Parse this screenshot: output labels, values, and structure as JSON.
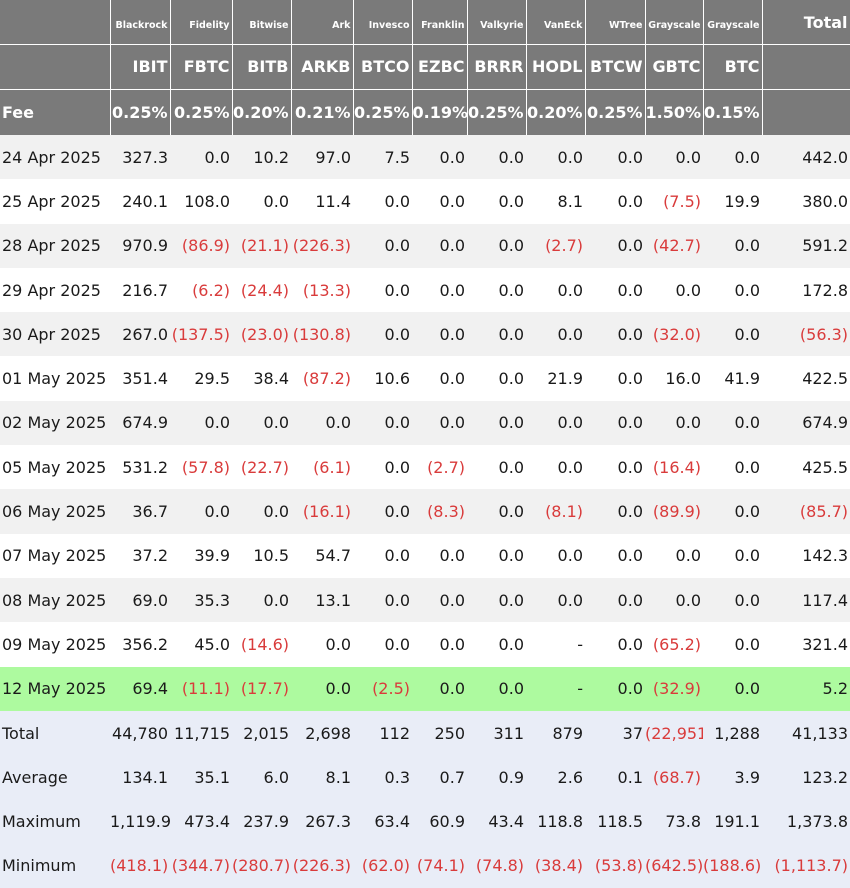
{
  "header": {
    "issuers": [
      "Blackrock",
      "Fidelity",
      "Bitwise",
      "Ark",
      "Invesco",
      "Franklin",
      "Valkyrie",
      "VanEck",
      "WTree",
      "Grayscale",
      "Grayscale"
    ],
    "total_label": "Total",
    "tickers": [
      "IBIT",
      "FBTC",
      "BITB",
      "ARKB",
      "BTCO",
      "EZBC",
      "BRRR",
      "HODL",
      "BTCW",
      "GBTC",
      "BTC"
    ],
    "fee_label": "Fee",
    "fees": [
      "0.25%",
      "0.25%",
      "0.20%",
      "0.21%",
      "0.25%",
      "0.19%",
      "0.25%",
      "0.20%",
      "0.25%",
      "1.50%",
      "0.15%"
    ]
  },
  "rows": [
    {
      "date": "24 Apr 2025",
      "values": [
        "327.3",
        "0.0",
        "10.2",
        "97.0",
        "7.5",
        "0.0",
        "0.0",
        "0.0",
        "0.0",
        "0.0",
        "0.0"
      ],
      "total": "442.0"
    },
    {
      "date": "25 Apr 2025",
      "values": [
        "240.1",
        "108.0",
        "0.0",
        "11.4",
        "0.0",
        "0.0",
        "0.0",
        "8.1",
        "0.0",
        "(7.5)",
        "19.9"
      ],
      "total": "380.0"
    },
    {
      "date": "28 Apr 2025",
      "values": [
        "970.9",
        "(86.9)",
        "(21.1)",
        "(226.3)",
        "0.0",
        "0.0",
        "0.0",
        "(2.7)",
        "0.0",
        "(42.7)",
        "0.0"
      ],
      "total": "591.2"
    },
    {
      "date": "29 Apr 2025",
      "values": [
        "216.7",
        "(6.2)",
        "(24.4)",
        "(13.3)",
        "0.0",
        "0.0",
        "0.0",
        "0.0",
        "0.0",
        "0.0",
        "0.0"
      ],
      "total": "172.8"
    },
    {
      "date": "30 Apr 2025",
      "values": [
        "267.0",
        "(137.5)",
        "(23.0)",
        "(130.8)",
        "0.0",
        "0.0",
        "0.0",
        "0.0",
        "0.0",
        "(32.0)",
        "0.0"
      ],
      "total": "(56.3)"
    },
    {
      "date": "01 May 2025",
      "values": [
        "351.4",
        "29.5",
        "38.4",
        "(87.2)",
        "10.6",
        "0.0",
        "0.0",
        "21.9",
        "0.0",
        "16.0",
        "41.9"
      ],
      "total": "422.5"
    },
    {
      "date": "02 May 2025",
      "values": [
        "674.9",
        "0.0",
        "0.0",
        "0.0",
        "0.0",
        "0.0",
        "0.0",
        "0.0",
        "0.0",
        "0.0",
        "0.0"
      ],
      "total": "674.9"
    },
    {
      "date": "05 May 2025",
      "values": [
        "531.2",
        "(57.8)",
        "(22.7)",
        "(6.1)",
        "0.0",
        "(2.7)",
        "0.0",
        "0.0",
        "0.0",
        "(16.4)",
        "0.0"
      ],
      "total": "425.5"
    },
    {
      "date": "06 May 2025",
      "values": [
        "36.7",
        "0.0",
        "0.0",
        "(16.1)",
        "0.0",
        "(8.3)",
        "0.0",
        "(8.1)",
        "0.0",
        "(89.9)",
        "0.0"
      ],
      "total": "(85.7)"
    },
    {
      "date": "07 May 2025",
      "values": [
        "37.2",
        "39.9",
        "10.5",
        "54.7",
        "0.0",
        "0.0",
        "0.0",
        "0.0",
        "0.0",
        "0.0",
        "0.0"
      ],
      "total": "142.3"
    },
    {
      "date": "08 May 2025",
      "values": [
        "69.0",
        "35.3",
        "0.0",
        "13.1",
        "0.0",
        "0.0",
        "0.0",
        "0.0",
        "0.0",
        "0.0",
        "0.0"
      ],
      "total": "117.4"
    },
    {
      "date": "09 May 2025",
      "values": [
        "356.2",
        "45.0",
        "(14.6)",
        "0.0",
        "0.0",
        "0.0",
        "0.0",
        "-",
        "0.0",
        "(65.2)",
        "0.0"
      ],
      "total": "321.4"
    },
    {
      "date": "12 May 2025",
      "values": [
        "69.4",
        "(11.1)",
        "(17.7)",
        "0.0",
        "(2.5)",
        "0.0",
        "0.0",
        "-",
        "0.0",
        "(32.9)",
        "0.0"
      ],
      "total": "5.2",
      "highlight": true
    }
  ],
  "summary": [
    {
      "label": "Total",
      "values": [
        "44,780",
        "11,715",
        "2,015",
        "2,698",
        "112",
        "250",
        "311",
        "879",
        "37",
        "(22,951)",
        "1,288"
      ],
      "total": "41,133"
    },
    {
      "label": "Average",
      "values": [
        "134.1",
        "35.1",
        "6.0",
        "8.1",
        "0.3",
        "0.7",
        "0.9",
        "2.6",
        "0.1",
        "(68.7)",
        "3.9"
      ],
      "total": "123.2"
    },
    {
      "label": "Maximum",
      "values": [
        "1,119.9",
        "473.4",
        "237.9",
        "267.3",
        "63.4",
        "60.9",
        "43.4",
        "118.8",
        "118.5",
        "73.8",
        "191.1"
      ],
      "total": "1,373.8"
    },
    {
      "label": "Minimum",
      "values": [
        "(418.1)",
        "(344.7)",
        "(280.7)",
        "(226.3)",
        "(62.0)",
        "(74.1)",
        "(74.8)",
        "(38.4)",
        "(53.8)",
        "(642.5)",
        "(188.6)"
      ],
      "total": "(1,113.7)"
    }
  ],
  "colors": {
    "header_bg": "#7a7a7a",
    "negative": "#d93b3b",
    "highlight_row": "#adfa9f",
    "summary_bg": "#e9edf7",
    "stripe": "#f1f1f1"
  }
}
